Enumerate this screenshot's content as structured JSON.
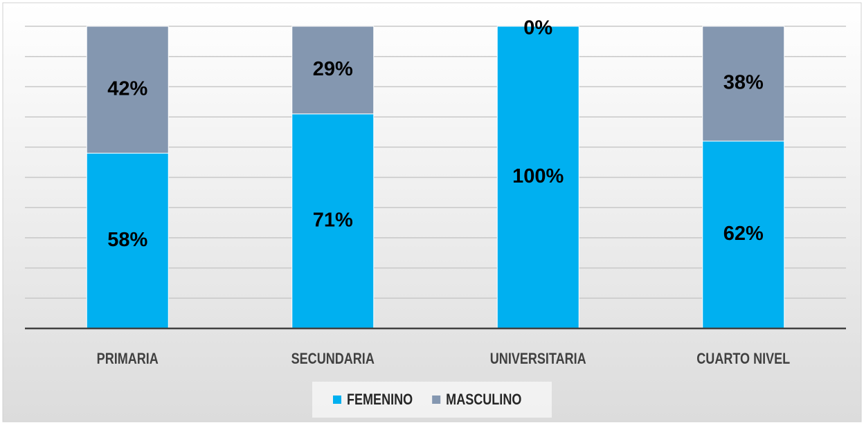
{
  "chart_data": {
    "type": "stacked_bar",
    "categories": [
      "PRIMARIA",
      "SECUNDARIA",
      "UNIVERSITARIA",
      "CUARTO NIVEL"
    ],
    "series": [
      {
        "name": "FEMENINO",
        "color": "#00b0f0",
        "values": [
          58,
          71,
          100,
          62
        ],
        "value_labels": [
          "58%",
          "71%",
          "100%",
          "62%"
        ]
      },
      {
        "name": "MASCULINO",
        "color": "#8497b0",
        "values": [
          42,
          29,
          0,
          38
        ],
        "value_labels": [
          "42%",
          "29%",
          "0%",
          "38%"
        ]
      }
    ],
    "ylim": [
      0,
      100
    ],
    "yticks": [
      0,
      10,
      20,
      30,
      40,
      50,
      60,
      70,
      80,
      90,
      100
    ],
    "grid": true,
    "legend": "bottom"
  }
}
